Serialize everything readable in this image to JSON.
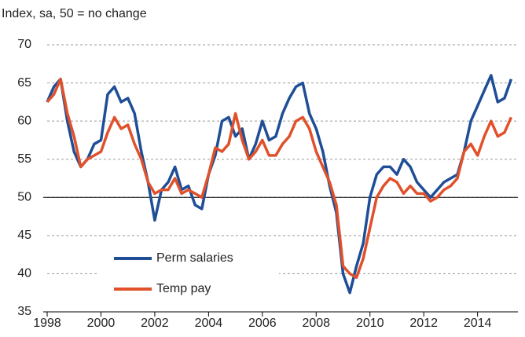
{
  "chart_data": {
    "type": "line",
    "title": "Index, sa, 50 = no change",
    "x": [
      1998,
      1998.25,
      1998.5,
      1998.75,
      1999,
      1999.25,
      1999.5,
      1999.75,
      2000,
      2000.25,
      2000.5,
      2000.75,
      2001,
      2001.25,
      2001.5,
      2001.75,
      2002,
      2002.25,
      2002.5,
      2002.75,
      2003,
      2003.25,
      2003.5,
      2003.75,
      2004,
      2004.25,
      2004.5,
      2004.75,
      2005,
      2005.25,
      2005.5,
      2005.75,
      2006,
      2006.25,
      2006.5,
      2006.75,
      2007,
      2007.25,
      2007.5,
      2007.75,
      2008,
      2008.25,
      2008.5,
      2008.75,
      2009,
      2009.25,
      2009.5,
      2009.75,
      2010,
      2010.25,
      2010.5,
      2010.75,
      2011,
      2011.25,
      2011.5,
      2011.75,
      2012,
      2012.25,
      2012.5,
      2012.75,
      2013,
      2013.25,
      2013.5,
      2013.75,
      2014,
      2014.25,
      2014.5,
      2014.75,
      2015,
      2015.25
    ],
    "series": [
      {
        "name": "Perm salaries",
        "color": "#1f4e96",
        "values": [
          62.5,
          64.5,
          65.5,
          60,
          56,
          54,
          55,
          57,
          57.5,
          63.5,
          64.5,
          62.5,
          63,
          61,
          56,
          52,
          47,
          51,
          52,
          54,
          51,
          51.5,
          49,
          48.5,
          53,
          55.5,
          60,
          60.5,
          58,
          59,
          55,
          57,
          60,
          57.5,
          58,
          61,
          63,
          64.5,
          65,
          61,
          59,
          56,
          51.5,
          48,
          40,
          37.5,
          41,
          44,
          50,
          53,
          54,
          54,
          53,
          55,
          54,
          52,
          51,
          50,
          51,
          52,
          52.5,
          53,
          56,
          60,
          62,
          64,
          66,
          62.5,
          63,
          65.5
        ]
      },
      {
        "name": "Temp pay",
        "color": "#e0512b",
        "values": [
          62.5,
          63.5,
          65.5,
          61,
          58,
          54,
          55,
          55.5,
          56,
          58.5,
          60.5,
          59,
          59.5,
          57,
          55,
          52,
          50.5,
          51,
          51,
          52.5,
          50.5,
          51,
          50.5,
          50,
          53,
          56.5,
          56,
          57,
          61,
          57.5,
          55,
          56,
          57.5,
          55.5,
          55.5,
          57,
          58,
          60,
          60.5,
          59,
          56,
          54,
          52,
          49,
          41,
          40,
          39.5,
          42,
          46,
          50,
          51.5,
          52.5,
          52,
          50.5,
          51.5,
          50.5,
          50.5,
          49.5,
          50,
          51,
          51.5,
          52.5,
          56,
          57,
          55.5,
          58,
          60,
          58,
          58.5,
          60.5
        ]
      }
    ],
    "xlim": [
      1998,
      2015.5
    ],
    "xticks": [
      1998,
      2000,
      2002,
      2004,
      2006,
      2008,
      2010,
      2012,
      2014
    ],
    "ylim": [
      35,
      70
    ],
    "yticks": [
      35,
      40,
      45,
      50,
      55,
      60,
      65,
      70
    ],
    "reference_line": 50,
    "grid": true
  }
}
